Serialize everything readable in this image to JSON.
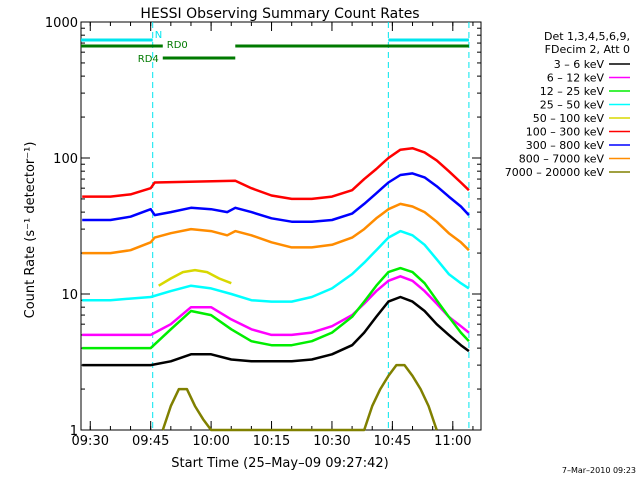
{
  "chart_data": {
    "type": "line",
    "title": "HESSI Observing Summary Count Rates",
    "xlabel": "Start Time (25–May–09 09:27:42)",
    "ylabel": "Count Rate (s⁻¹ detector⁻¹)",
    "footer": "7–Mar–2010 09:23",
    "y_scale": "log",
    "ylim": [
      1,
      1000
    ],
    "y_ticks": [
      {
        "value": 1,
        "label": "1"
      },
      {
        "value": 10,
        "label": "10"
      },
      {
        "value": 100,
        "label": "100"
      },
      {
        "value": 1000,
        "label": "1000"
      }
    ],
    "xlim": [
      "09:27:42",
      "11:07:00"
    ],
    "x_ticks": [
      "09:30",
      "09:45",
      "10:00",
      "10:15",
      "10:30",
      "10:45",
      "11:00"
    ],
    "legend_header": [
      "Det 1,3,4,5,6,9,",
      "FDecim 2, Att 0"
    ],
    "legend_position": "right",
    "flags": [
      {
        "label": "N",
        "color": "#00e5ee",
        "segments": [
          [
            "09:27:42",
            "09:45:30"
          ],
          [
            "10:44:00",
            "11:04:00"
          ]
        ]
      },
      {
        "label": "RD0",
        "color": "#007a00",
        "segments": [
          [
            "09:27:42",
            "09:48:00"
          ],
          [
            "10:06:00",
            "11:04:00"
          ]
        ]
      },
      {
        "label": "RD4",
        "color": "#007a00",
        "segments": [
          [
            "09:48:00",
            "10:06:00"
          ]
        ]
      }
    ],
    "vlines": [
      "09:45:30",
      "10:44:00",
      "11:04:00"
    ],
    "series": [
      {
        "name": "3 – 6 keV",
        "color": "#000000",
        "x": [
          "09:28",
          "09:35",
          "09:45",
          "09:50",
          "09:55",
          "10:00",
          "10:05",
          "10:10",
          "10:15",
          "10:20",
          "10:25",
          "10:30",
          "10:35",
          "10:38",
          "10:41",
          "10:44",
          "10:47",
          "10:50",
          "10:53",
          "10:56",
          "10:59",
          "11:02",
          "11:04"
        ],
        "y": [
          3,
          3,
          3,
          3.2,
          3.6,
          3.6,
          3.3,
          3.2,
          3.2,
          3.2,
          3.3,
          3.6,
          4.2,
          5.2,
          6.8,
          8.8,
          9.5,
          8.8,
          7.5,
          6,
          5,
          4.2,
          3.8
        ]
      },
      {
        "name": "6 – 12 keV",
        "color": "#ff00ff",
        "x": [
          "09:28",
          "09:35",
          "09:45",
          "09:50",
          "09:55",
          "10:00",
          "10:05",
          "10:10",
          "10:15",
          "10:20",
          "10:25",
          "10:30",
          "10:35",
          "10:38",
          "10:41",
          "10:44",
          "10:47",
          "10:50",
          "10:53",
          "10:56",
          "10:59",
          "11:02",
          "11:04"
        ],
        "y": [
          5,
          5,
          5,
          6,
          8,
          8,
          6.5,
          5.5,
          5,
          5,
          5.2,
          5.8,
          7,
          8.5,
          10.5,
          12.5,
          13.5,
          12.5,
          10.5,
          8.5,
          6.8,
          5.8,
          5.2
        ]
      },
      {
        "name": "12 – 25 keV",
        "color": "#00ee00",
        "x": [
          "09:28",
          "09:35",
          "09:45",
          "09:50",
          "09:55",
          "10:00",
          "10:05",
          "10:10",
          "10:15",
          "10:20",
          "10:25",
          "10:30",
          "10:35",
          "10:38",
          "10:41",
          "10:44",
          "10:47",
          "10:50",
          "10:53",
          "10:56",
          "10:59",
          "11:02",
          "11:04"
        ],
        "y": [
          4,
          4,
          4,
          5.5,
          7.5,
          7,
          5.5,
          4.5,
          4.2,
          4.2,
          4.5,
          5.2,
          6.8,
          8.8,
          11.5,
          14.5,
          15.5,
          14.5,
          12,
          9,
          6.8,
          5.2,
          4.5
        ]
      },
      {
        "name": "25 – 50 keV",
        "color": "#00ffff",
        "x": [
          "09:28",
          "09:35",
          "09:45",
          "09:50",
          "09:55",
          "10:00",
          "10:05",
          "10:10",
          "10:15",
          "10:20",
          "10:25",
          "10:30",
          "10:35",
          "10:38",
          "10:41",
          "10:44",
          "10:47",
          "10:50",
          "10:53",
          "10:56",
          "10:59",
          "11:02",
          "11:04"
        ],
        "y": [
          9,
          9,
          9.5,
          10.5,
          11.5,
          11,
          10,
          9,
          8.8,
          8.8,
          9.5,
          11,
          14,
          17,
          21,
          26,
          29,
          27,
          23,
          18,
          14,
          12,
          11
        ]
      },
      {
        "name": "50 – 100 keV",
        "color": "#d8d800",
        "x": [
          "09:47",
          "09:50",
          "09:53",
          "09:56",
          "09:59",
          "10:02",
          "10:05"
        ],
        "y": [
          11.5,
          13,
          14.5,
          15,
          14.5,
          13,
          12
        ]
      },
      {
        "name": "100 – 300 keV",
        "color": "#ff0000",
        "x": [
          "09:28",
          "09:35",
          "09:40",
          "09:45",
          "09:46",
          "10:06",
          "10:10",
          "10:15",
          "10:20",
          "10:25",
          "10:30",
          "10:35",
          "10:38",
          "10:41",
          "10:44",
          "10:47",
          "10:50",
          "10:53",
          "10:56",
          "10:59",
          "11:02",
          "11:04"
        ],
        "y": [
          52,
          52,
          54,
          60,
          66,
          68,
          60,
          53,
          50,
          50,
          52,
          58,
          70,
          83,
          100,
          115,
          118,
          110,
          96,
          80,
          66,
          58
        ]
      },
      {
        "name": "300 – 800 keV",
        "color": "#0000ff",
        "x": [
          "09:28",
          "09:35",
          "09:40",
          "09:45",
          "09:46",
          "09:50",
          "09:55",
          "10:00",
          "10:04",
          "10:06",
          "10:10",
          "10:15",
          "10:20",
          "10:25",
          "10:30",
          "10:35",
          "10:38",
          "10:41",
          "10:44",
          "10:47",
          "10:50",
          "10:53",
          "10:56",
          "10:59",
          "11:02",
          "11:04"
        ],
        "y": [
          35,
          35,
          37,
          42,
          38,
          40,
          43,
          42,
          40,
          43,
          40,
          36,
          34,
          34,
          35,
          39,
          46,
          55,
          66,
          75,
          77,
          72,
          62,
          52,
          44,
          38
        ]
      },
      {
        "name": "800 – 7000 keV",
        "color": "#ff8c00",
        "x": [
          "09:28",
          "09:35",
          "09:40",
          "09:45",
          "09:46",
          "09:50",
          "09:55",
          "10:00",
          "10:04",
          "10:06",
          "10:10",
          "10:15",
          "10:20",
          "10:25",
          "10:30",
          "10:35",
          "10:38",
          "10:41",
          "10:44",
          "10:47",
          "10:50",
          "10:53",
          "10:56",
          "10:59",
          "11:02",
          "11:04"
        ],
        "y": [
          20,
          20,
          21,
          24,
          26,
          28,
          30,
          29,
          27,
          29,
          27,
          24,
          22,
          22,
          23,
          26,
          30,
          36,
          42,
          46,
          44,
          40,
          34,
          28,
          24,
          21
        ]
      },
      {
        "name": "7000 – 20000 keV",
        "color": "#808000",
        "x": [
          "09:48",
          "09:50",
          "09:52",
          "09:54",
          "09:56",
          "09:58",
          "10:00",
          "10:02",
          "10:38",
          "10:40",
          "10:42",
          "10:44",
          "10:46",
          "10:48",
          "10:50",
          "10:52",
          "10:54",
          "10:56"
        ],
        "y": [
          1,
          1.5,
          2,
          2,
          1.5,
          1.2,
          1,
          1,
          1,
          1.5,
          2,
          2.5,
          3,
          3,
          2.5,
          2,
          1.5,
          1
        ]
      }
    ]
  }
}
